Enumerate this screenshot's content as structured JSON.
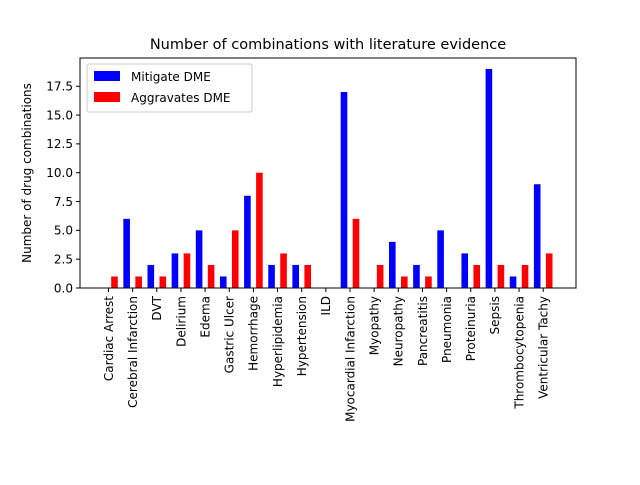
{
  "chart_data": {
    "type": "bar",
    "title": "Number of combinations with literature evidence",
    "xlabel": "",
    "ylabel": "Number of drug combinations",
    "ylim": [
      0,
      19.95
    ],
    "yticks": [
      0.0,
      2.5,
      5.0,
      7.5,
      10.0,
      12.5,
      15.0,
      17.5
    ],
    "ytick_labels": [
      "0.0",
      "2.5",
      "5.0",
      "7.5",
      "10.0",
      "12.5",
      "15.0",
      "17.5"
    ],
    "grid": false,
    "legend_position": "top-left",
    "categories": [
      "Cardiac Arrest",
      "Cerebral Infarction",
      "DVT",
      "Delirium",
      "Edema",
      "Gastric Ulcer",
      "Hemorrhage",
      "Hyperlipidemia",
      "Hypertension",
      "ILD",
      "Myocardial Infarction",
      "Myopathy",
      "Neuropathy",
      "Pancreatitis",
      "Pneumonia",
      "Proteinuria",
      "Sepsis",
      "Thrombocytopenia",
      "Ventricular Tachy"
    ],
    "series": [
      {
        "name": "Mitigate DME",
        "color": "#0000ff",
        "values": [
          0,
          6,
          2,
          3,
          5,
          1,
          8,
          2,
          2,
          0,
          17,
          0,
          4,
          2,
          5,
          3,
          19,
          1,
          9
        ]
      },
      {
        "name": "Aggravates DME",
        "color": "#ff0000",
        "values": [
          1,
          1,
          1,
          3,
          2,
          5,
          10,
          3,
          2,
          0,
          6,
          2,
          1,
          1,
          0,
          2,
          2,
          2,
          3
        ]
      }
    ]
  }
}
